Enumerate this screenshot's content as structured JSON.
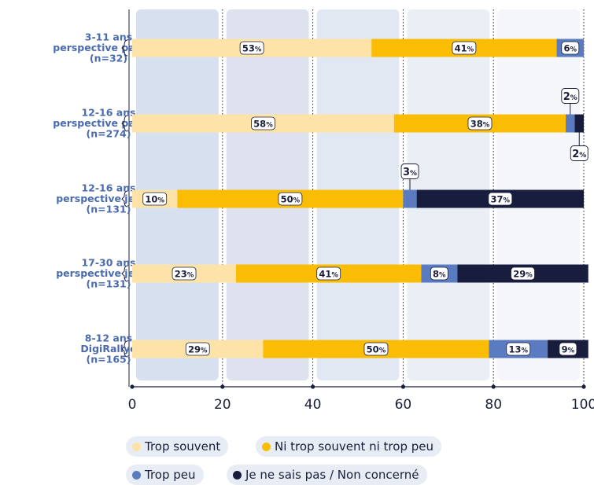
{
  "chart_data": {
    "type": "bar",
    "orientation": "horizontal",
    "stacked": true,
    "categories": [
      [
        "3-11 ans",
        "perspective parents",
        "(n=32)"
      ],
      [
        "12-16 ans",
        "perspective parents",
        "(n=274)"
      ],
      [
        "12-16 ans",
        "perspective jeunes",
        "(n=131)"
      ],
      [
        "17-30 ans",
        "perspective jeunes",
        "(n=131)"
      ],
      [
        "8-12 ans",
        "DigiRallye",
        "(n=165)"
      ]
    ],
    "series": [
      {
        "name": "Trop souvent",
        "color": "#fde3a7",
        "values": [
          53,
          58,
          10,
          23,
          29
        ]
      },
      {
        "name": "Ni trop souvent ni trop peu",
        "color": "#fbbc04",
        "values": [
          41,
          38,
          50,
          41,
          50
        ]
      },
      {
        "name": "Trop peu",
        "color": "#5a7bbf",
        "values": [
          6,
          2,
          3,
          8,
          13
        ]
      },
      {
        "name": "Je ne sais pas / Non concerné",
        "color": "#181d3d",
        "values": [
          0,
          2,
          37,
          29,
          9
        ]
      }
    ],
    "xlim": [
      0,
      100
    ],
    "xticks": [
      0,
      20,
      40,
      60,
      80,
      100
    ],
    "unit": "%",
    "legend_position": "bottom",
    "band_colors": [
      "#d6e0ef",
      "#dde2ee",
      "#e2e8f1",
      "#eaeff6",
      "#f4f6fa"
    ]
  }
}
